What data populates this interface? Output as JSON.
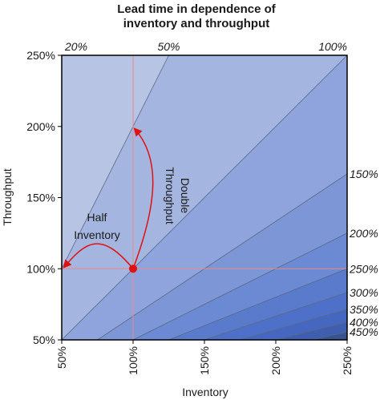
{
  "chart_data": {
    "type": "area",
    "title_lines": [
      "Lead time in dependence of",
      "inventory and throughput"
    ],
    "xlabel": "Inventory",
    "ylabel": "Throughput",
    "xlim": [
      50,
      250
    ],
    "ylim": [
      50,
      250
    ],
    "x_ticks": [
      "50%",
      "100%",
      "150%",
      "200%",
      "250%"
    ],
    "y_ticks": [
      "50%",
      "100%",
      "150%",
      "200%",
      "250%"
    ],
    "grid": false,
    "lead_time_levels": [
      20,
      50,
      100,
      150,
      200,
      250,
      300,
      350,
      400,
      450
    ],
    "lead_time_labels": [
      "20%",
      "50%",
      "100%",
      "150%",
      "200%",
      "250%",
      "300%",
      "350%",
      "400%",
      "450%"
    ],
    "reference_point": {
      "inventory": 100,
      "throughput": 100
    },
    "arrows": [
      {
        "label_lines": [
          "Half",
          "Inventory"
        ],
        "from": [
          100,
          100
        ],
        "to": [
          50,
          100
        ]
      },
      {
        "label_lines": [
          "Double",
          "Throughput"
        ],
        "from": [
          100,
          100
        ],
        "to": [
          100,
          200
        ]
      }
    ],
    "fill_colors": [
      "#ccd1e6",
      "#b8c4e3",
      "#a4b5df",
      "#8fa4dc",
      "#7c96d6",
      "#6c89d3",
      "#5a7acc",
      "#4e70c8",
      "#4567bf",
      "#3f5eaf",
      "#38538f"
    ],
    "guide_color": "#e88a8a",
    "arrow_color": "#e01010"
  }
}
